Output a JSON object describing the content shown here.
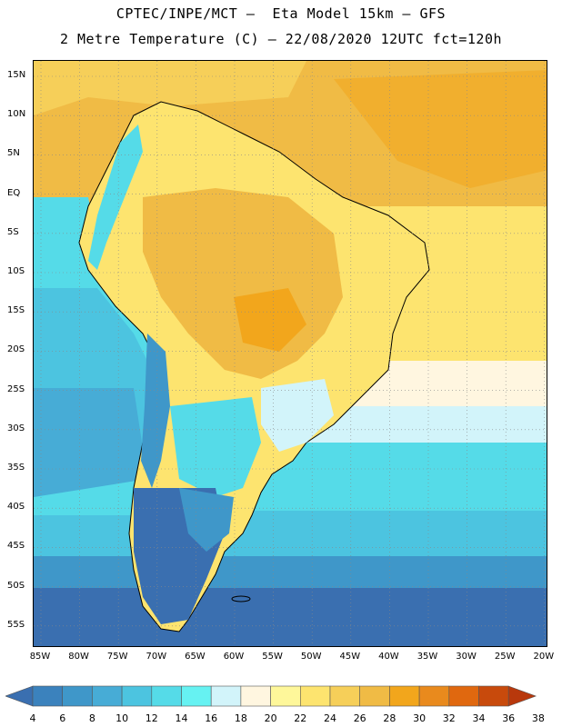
{
  "header": {
    "line1": "CPTEC/INPE/MCT –  Eta Model 15km – GFS",
    "line2": "2 Metre Temperature (C) – 22/08/2020 12UTC fct=120h"
  },
  "lat_labels": [
    "15N",
    "10N",
    "5N",
    "EQ",
    "5S",
    "10S",
    "15S",
    "20S",
    "25S",
    "30S",
    "35S",
    "40S",
    "45S",
    "50S",
    "55S"
  ],
  "lon_labels": [
    "85W",
    "80W",
    "75W",
    "70W",
    "65W",
    "60W",
    "55W",
    "50W",
    "45W",
    "40W",
    "35W",
    "30W",
    "25W",
    "20W"
  ],
  "colorbar": {
    "labels": [
      "4",
      "6",
      "8",
      "10",
      "12",
      "14",
      "16",
      "18",
      "20",
      "22",
      "24",
      "26",
      "28",
      "30",
      "32",
      "34",
      "36",
      "38"
    ],
    "colors": [
      "#3a6fb0",
      "#3b82bd",
      "#3f97c9",
      "#47acd6",
      "#4cc4e0",
      "#55dbe8",
      "#66f2f2",
      "#d2f4fa",
      "#fff6e0",
      "#fef79a",
      "#fde46f",
      "#f6cf59",
      "#f0bb45",
      "#f2a61c",
      "#e98a1d",
      "#e0680f",
      "#c84a0c",
      "#b8380c"
    ]
  },
  "palette": {
    "ocean_warm": "#f6cf59",
    "ocean_mid": "#fde46f",
    "land_hot": "#f0bb45",
    "land_warm": "#fde46f",
    "cool_cream": "#fff6e0",
    "pale_blue": "#d2f4fa",
    "cyan": "#55dbe8",
    "light_blue": "#4cc4e0",
    "mid_blue": "#3f97c9",
    "dark_blue": "#3a6fb0"
  }
}
